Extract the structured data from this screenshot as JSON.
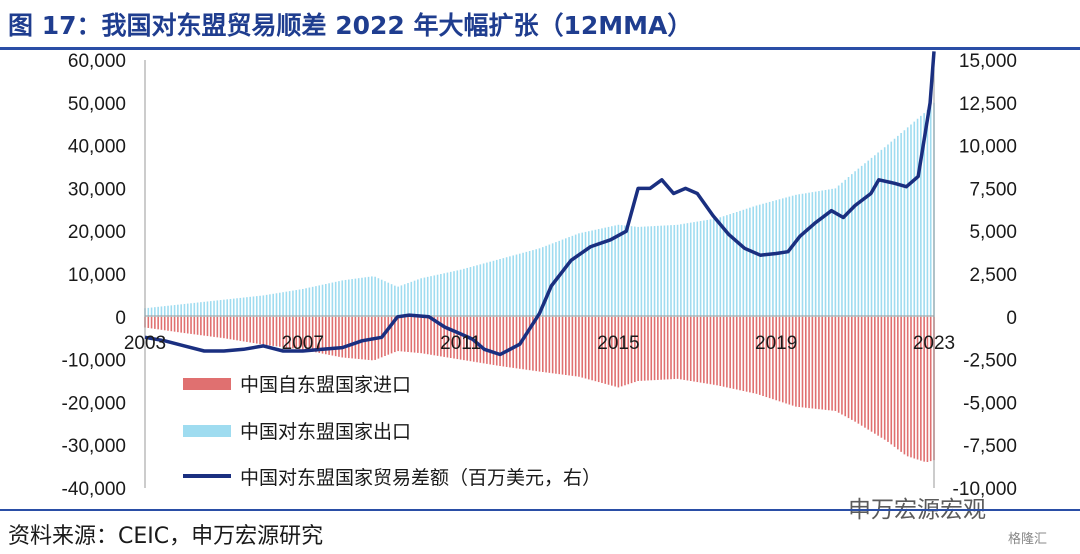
{
  "title": "图 17：我国对东盟贸易顺差 2022 年大幅扩张（12MMA）",
  "source": "资料来源：CEIC，申万宏源研究",
  "watermark": "申万宏源宏观",
  "watermark_small": "格隆汇",
  "chart_data": {
    "type": "bar+line",
    "left_axis": {
      "ylim": [
        -40000,
        60000
      ],
      "ticks": [
        60000,
        50000,
        40000,
        30000,
        20000,
        10000,
        0,
        -10000,
        -20000,
        -30000,
        -40000
      ],
      "tick_labels": [
        "60,000",
        "50,000",
        "40,000",
        "30,000",
        "20,000",
        "10,000",
        "0",
        "-10,000",
        "-20,000",
        "-30,000",
        "-40,000"
      ]
    },
    "right_axis": {
      "ylim": [
        -10000,
        15000
      ],
      "ticks": [
        15000,
        12500,
        10000,
        7500,
        5000,
        2500,
        0,
        -2500,
        -5000,
        -7500,
        -10000
      ],
      "tick_labels": [
        "15,000",
        "12,500",
        "10,000",
        "7,500",
        "5,000",
        "2,500",
        "0",
        "-2,500",
        "-5,000",
        "-7,500",
        "-10,000"
      ]
    },
    "x_axis": {
      "range": [
        2003.0,
        2023.0
      ],
      "tick_values": [
        2003,
        2007,
        2011,
        2015,
        2019,
        2023
      ],
      "tick_labels": [
        "2003",
        "2007",
        "2011",
        "2015",
        "2019",
        "2023"
      ]
    },
    "series": [
      {
        "name": "中国自东盟国家进口",
        "kind": "bar",
        "axis": "left",
        "color": "#e07070",
        "points": [
          [
            2003.0,
            -2500
          ],
          [
            2004.0,
            -3800
          ],
          [
            2005.0,
            -5000
          ],
          [
            2006.0,
            -6500
          ],
          [
            2007.0,
            -7700
          ],
          [
            2008.0,
            -9500
          ],
          [
            2008.8,
            -10200
          ],
          [
            2009.4,
            -8000
          ],
          [
            2010.0,
            -8500
          ],
          [
            2011.0,
            -10000
          ],
          [
            2012.0,
            -11500
          ],
          [
            2013.0,
            -12800
          ],
          [
            2014.0,
            -14000
          ],
          [
            2015.0,
            -16500
          ],
          [
            2015.5,
            -15000
          ],
          [
            2016.5,
            -14500
          ],
          [
            2017.5,
            -16000
          ],
          [
            2018.5,
            -18000
          ],
          [
            2019.5,
            -21000
          ],
          [
            2020.5,
            -22000
          ],
          [
            2021.0,
            -24500
          ],
          [
            2021.8,
            -29000
          ],
          [
            2022.3,
            -32500
          ],
          [
            2022.8,
            -34000
          ],
          [
            2023.0,
            -33500
          ]
        ]
      },
      {
        "name": "中国对东盟国家出口",
        "kind": "bar",
        "axis": "left",
        "color": "#9fdcf0",
        "points": [
          [
            2003.0,
            2000
          ],
          [
            2004.0,
            3000
          ],
          [
            2005.0,
            4000
          ],
          [
            2006.0,
            5000
          ],
          [
            2007.0,
            6500
          ],
          [
            2008.0,
            8500
          ],
          [
            2008.8,
            9500
          ],
          [
            2009.4,
            7000
          ],
          [
            2010.0,
            9000
          ],
          [
            2011.0,
            11000
          ],
          [
            2012.0,
            13500
          ],
          [
            2013.0,
            16000
          ],
          [
            2014.0,
            19500
          ],
          [
            2015.0,
            21500
          ],
          [
            2015.5,
            21000
          ],
          [
            2016.5,
            21500
          ],
          [
            2017.5,
            23000
          ],
          [
            2018.5,
            26000
          ],
          [
            2019.5,
            28500
          ],
          [
            2020.5,
            30000
          ],
          [
            2021.0,
            34000
          ],
          [
            2021.8,
            40000
          ],
          [
            2022.3,
            44000
          ],
          [
            2022.8,
            48000
          ],
          [
            2023.0,
            50000
          ]
        ]
      },
      {
        "name": "中国对东盟国家贸易差额（百万美元，右）",
        "kind": "line",
        "axis": "right",
        "color": "#1a2f80",
        "points": [
          [
            2003.0,
            -1200
          ],
          [
            2003.5,
            -1400
          ],
          [
            2004.0,
            -1700
          ],
          [
            2004.5,
            -2000
          ],
          [
            2005.0,
            -2000
          ],
          [
            2005.5,
            -1900
          ],
          [
            2006.0,
            -1700
          ],
          [
            2006.5,
            -2000
          ],
          [
            2007.0,
            -2000
          ],
          [
            2007.5,
            -1900
          ],
          [
            2008.0,
            -1800
          ],
          [
            2008.5,
            -1400
          ],
          [
            2009.0,
            -1200
          ],
          [
            2009.4,
            0
          ],
          [
            2009.7,
            100
          ],
          [
            2010.2,
            0
          ],
          [
            2010.6,
            -600
          ],
          [
            2011.0,
            -1000
          ],
          [
            2011.3,
            -1300
          ],
          [
            2011.6,
            -1900
          ],
          [
            2012.0,
            -2200
          ],
          [
            2012.5,
            -1600
          ],
          [
            2013.0,
            200
          ],
          [
            2013.3,
            1800
          ],
          [
            2013.8,
            3300
          ],
          [
            2014.3,
            4100
          ],
          [
            2014.8,
            4500
          ],
          [
            2015.2,
            5000
          ],
          [
            2015.5,
            7500
          ],
          [
            2015.8,
            7500
          ],
          [
            2016.1,
            8000
          ],
          [
            2016.4,
            7200
          ],
          [
            2016.7,
            7500
          ],
          [
            2017.0,
            7200
          ],
          [
            2017.4,
            5900
          ],
          [
            2017.8,
            4800
          ],
          [
            2018.2,
            4000
          ],
          [
            2018.6,
            3600
          ],
          [
            2019.0,
            3700
          ],
          [
            2019.3,
            3800
          ],
          [
            2019.6,
            4700
          ],
          [
            2020.0,
            5500
          ],
          [
            2020.4,
            6200
          ],
          [
            2020.7,
            5800
          ],
          [
            2021.0,
            6500
          ],
          [
            2021.4,
            7200
          ],
          [
            2021.6,
            8000
          ],
          [
            2022.0,
            7800
          ],
          [
            2022.3,
            7600
          ],
          [
            2022.6,
            8200
          ],
          [
            2022.9,
            12500
          ],
          [
            2023.0,
            15500
          ]
        ]
      }
    ],
    "legend": {
      "position": "lower-left",
      "labels": [
        "中国自东盟国家进口",
        "中国对东盟国家出口",
        "中国对东盟国家贸易差额（百万美元，右）"
      ]
    },
    "grid": false
  }
}
